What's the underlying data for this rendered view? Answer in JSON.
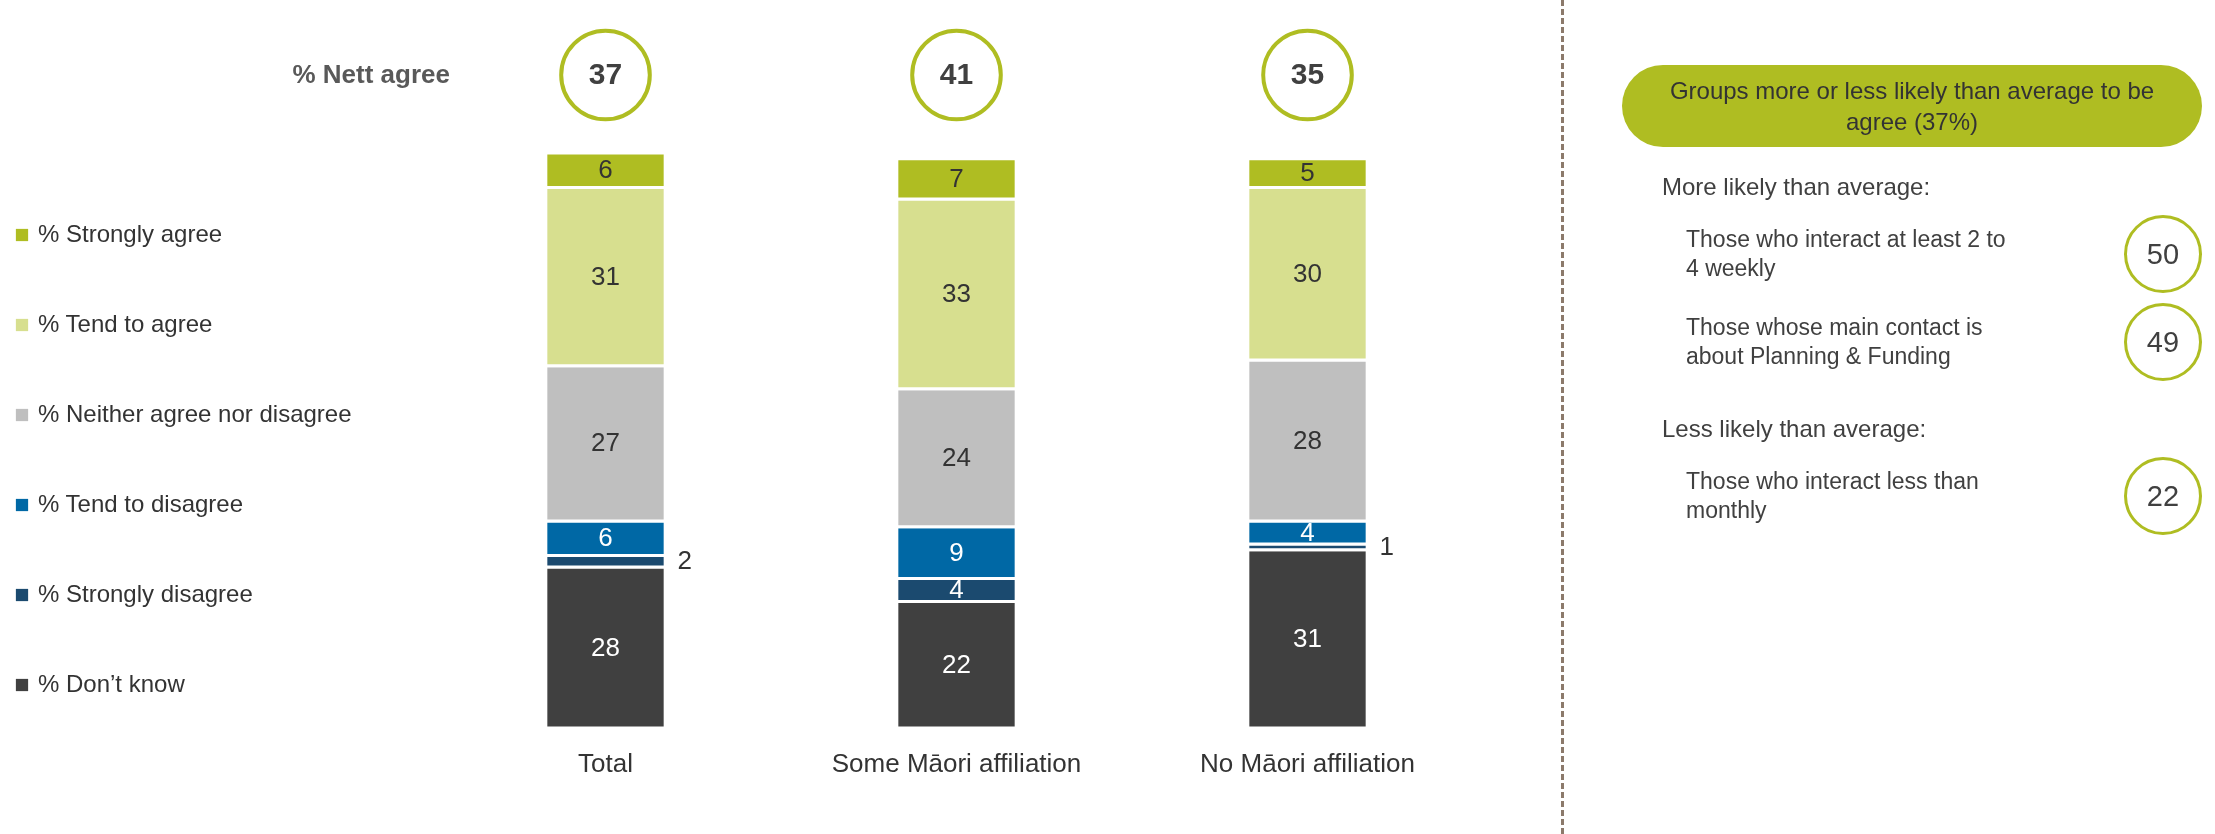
{
  "chart_data": {
    "type": "bar",
    "stacked": true,
    "categories": [
      "Total",
      "Some Māori affiliation",
      "No Māori affiliation"
    ],
    "series": [
      {
        "name": "% Don’t know",
        "color": "#404040",
        "values": [
          28,
          22,
          31
        ]
      },
      {
        "name": "% Strongly disagree",
        "color": "#1b4a6f",
        "values": [
          2,
          4,
          1
        ]
      },
      {
        "name": "% Tend to disagree",
        "color": "#0068a5",
        "values": [
          6,
          9,
          4
        ]
      },
      {
        "name": "% Neither agree nor disagree",
        "color": "#bfbfbf",
        "values": [
          27,
          24,
          28
        ]
      },
      {
        "name": "% Tend to agree",
        "color": "#d7df8f",
        "values": [
          31,
          33,
          30
        ]
      },
      {
        "name": "% Strongly agree",
        "color": "#afbd22",
        "values": [
          6,
          7,
          5
        ]
      }
    ],
    "ylim": [
      0,
      100
    ],
    "tick_labels": "x",
    "data_labels": true,
    "legend": "left",
    "grid": false,
    "annotations": [
      "% Nett agree",
      "37",
      "41",
      "35",
      "Groups more or less likely than average to be agree (37%)",
      "More likely than average:",
      "Those who interact at least 2 to 4 weekly",
      "50",
      "Those whose main contact is about Planning & Funding",
      "49",
      "Less likely than average:",
      "Those who interact less than monthly",
      "22"
    ]
  }
}
